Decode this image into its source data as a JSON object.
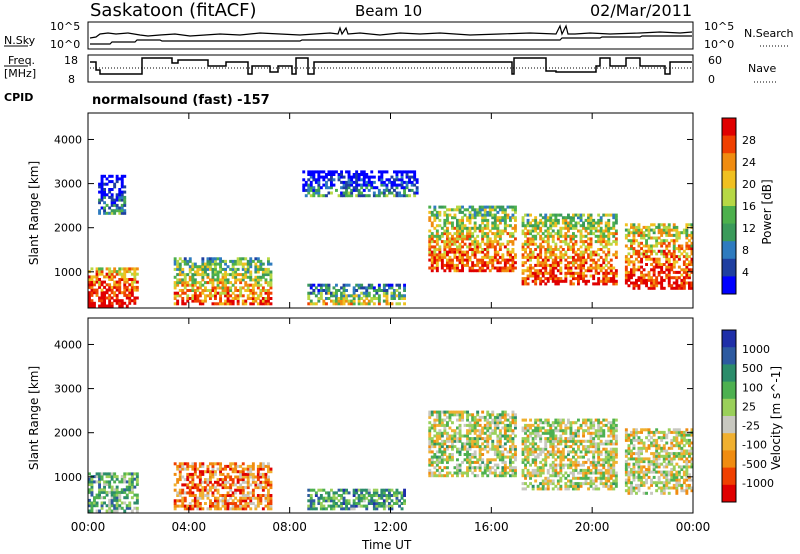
{
  "header": {
    "station": "Saskatoon (fitACF)",
    "beam": "Beam 10",
    "date": "02/Mar/2011"
  },
  "summary_panel": {
    "nsky_label": "N.Sky",
    "nsky_ticks": [
      "10^5",
      "10^0"
    ],
    "nsearch_label": "N.Search",
    "nsearch_ticks": [
      "10^5",
      "10^0"
    ],
    "freq_label": "Freq.",
    "freq_unit": "[MHz]",
    "freq_ticks": [
      "18",
      "8"
    ],
    "nave_label": "Nave",
    "nave_ticks": [
      "60",
      "0"
    ],
    "cpid_label": "CPID",
    "cpid_value": "normalsound (fast) -157"
  },
  "colors": {
    "power_scale": [
      "#0000ff",
      "#1f3fa0",
      "#2e7bbf",
      "#3a9a5a",
      "#4cb04c",
      "#b6d845",
      "#f0c020",
      "#f08c10",
      "#f04000",
      "#e00000"
    ],
    "velocity_scale": [
      "#1f2fa8",
      "#2d5aa0",
      "#2b8c6a",
      "#4db050",
      "#9ad05a",
      "#c8c8c0",
      "#f0b030",
      "#f08c10",
      "#f04000",
      "#e00000"
    ],
    "gray_ground": "#c8c8c0"
  },
  "chart_data": [
    {
      "type": "heatmap",
      "panel": "power",
      "ylabel": "Slant Range [km]",
      "ylim": [
        180,
        4600
      ],
      "y_ticks": [
        "1000",
        "2000",
        "3000",
        "4000"
      ],
      "xlim": [
        0,
        24
      ],
      "x_ticks": [
        "00:00",
        "04:00",
        "08:00",
        "12:00",
        "16:00",
        "20:00",
        "00:00"
      ],
      "colorbar_label": "Power [dB]",
      "colorbar_ticks": [
        "4",
        "8",
        "12",
        "16",
        "20",
        "24",
        "28"
      ],
      "echo_regions": [
        {
          "t0": 0.0,
          "t1": 2.0,
          "r0": 200,
          "r1": 1100,
          "level": 0.85
        },
        {
          "t0": 0.4,
          "t1": 1.5,
          "r0": 2300,
          "r1": 3200,
          "level": 0.1
        },
        {
          "t0": 3.4,
          "t1": 7.2,
          "r0": 250,
          "r1": 1300,
          "level": 0.6
        },
        {
          "t0": 8.7,
          "t1": 12.5,
          "r0": 250,
          "r1": 700,
          "level": 0.4
        },
        {
          "t0": 8.5,
          "t1": 13.0,
          "r0": 2700,
          "r1": 3300,
          "level": 0.1
        },
        {
          "t0": 13.5,
          "t1": 17.0,
          "r0": 1000,
          "r1": 2500,
          "level": 0.65
        },
        {
          "t0": 17.2,
          "t1": 21.0,
          "r0": 700,
          "r1": 2300,
          "level": 0.7
        },
        {
          "t0": 21.3,
          "t1": 24.0,
          "r0": 600,
          "r1": 2100,
          "level": 0.75
        }
      ]
    },
    {
      "type": "heatmap",
      "panel": "velocity",
      "ylabel": "Slant Range [km]",
      "ylim": [
        180,
        4600
      ],
      "y_ticks": [
        "1000",
        "2000",
        "3000",
        "4000"
      ],
      "xlim": [
        0,
        24
      ],
      "x_ticks": [
        "00:00",
        "04:00",
        "08:00",
        "12:00",
        "16:00",
        "20:00",
        "00:00"
      ],
      "xlabel": "Time UT",
      "colorbar_label": "Velocity [m s^-1]",
      "colorbar_ticks": [
        "1000",
        "500",
        "100",
        "25",
        "-25",
        "-100",
        "-500",
        "-1000"
      ],
      "echo_regions": [
        {
          "t0": 0.0,
          "t1": 2.0,
          "r0": 200,
          "r1": 1100,
          "level": 0.35
        },
        {
          "t0": 3.4,
          "t1": 7.2,
          "r0": 250,
          "r1": 1300,
          "level": 0.75
        },
        {
          "t0": 8.7,
          "t1": 12.5,
          "r0": 250,
          "r1": 700,
          "level": 0.3
        },
        {
          "t0": 13.5,
          "t1": 17.0,
          "r0": 1000,
          "r1": 2500,
          "level": 0.5
        },
        {
          "t0": 17.2,
          "t1": 21.0,
          "r0": 700,
          "r1": 2300,
          "level": 0.52
        },
        {
          "t0": 21.3,
          "t1": 24.0,
          "r0": 600,
          "r1": 2100,
          "level": 0.55
        }
      ]
    }
  ]
}
